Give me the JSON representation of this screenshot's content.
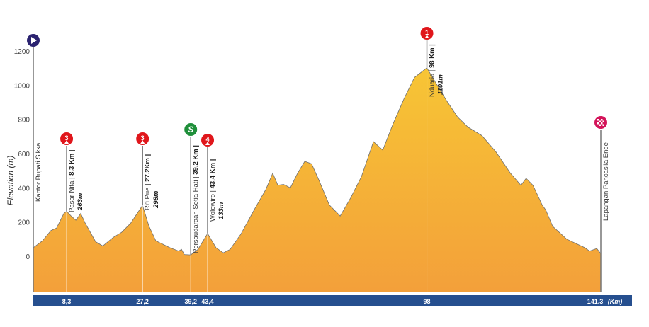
{
  "chart_data": {
    "type": "area",
    "title": "",
    "xlabel": "(Km)",
    "ylabel": "Elevation (m)",
    "xlim": [
      0,
      141.3
    ],
    "ylim": [
      -200,
      1200
    ],
    "y_ticks": [
      0,
      200,
      400,
      600,
      800,
      1000,
      1200
    ],
    "x_tick_labels": [
      {
        "km": 8.3,
        "label": "8,3"
      },
      {
        "km": 27.2,
        "label": "27,2"
      },
      {
        "km": 39.2,
        "label": "39,2"
      },
      {
        "km": 43.4,
        "label": "43,4"
      },
      {
        "km": 98,
        "label": "98"
      },
      {
        "km": 141.3,
        "label": "141.3"
      }
    ],
    "grid": false,
    "colors": {
      "fill_top": "#f7c535",
      "fill_bottom": "#f3a03a",
      "axis_bar": "#264f8f",
      "climb": "#e0161b",
      "sprint": "#1f8f3a",
      "start": "#2b2370",
      "finish": "#d4145a"
    },
    "profile": {
      "x": [
        0,
        2.3,
        4.4,
        5.8,
        7.6,
        8.3,
        9.3,
        10.6,
        11.8,
        12.9,
        15.5,
        17.3,
        19.9,
        22,
        24.3,
        27.2,
        28.8,
        30.5,
        34,
        36.2,
        36.9,
        37.6,
        39.2,
        41,
        43.4,
        45.5,
        47.3,
        49,
        51.7,
        55.2,
        57.9,
        59.6,
        60.9,
        62.3,
        64,
        65.8,
        67.6,
        69.3,
        71.1,
        73.7,
        76.4,
        79,
        81.7,
        84.7,
        87,
        89.6,
        92.3,
        94.9,
        98,
        100.3,
        102.9,
        105.6,
        108.2,
        111.7,
        115.2,
        118.8,
        121.4,
        122.7,
        124.4,
        126.7,
        127.6,
        129.3,
        132.8,
        137.3,
        138.5,
        140.3,
        141.3
      ],
      "y": [
        50,
        90,
        150,
        165,
        250,
        263,
        238,
        210,
        250,
        195,
        85,
        60,
        110,
        140,
        195,
        298,
        175,
        90,
        50,
        30,
        40,
        10,
        8,
        40,
        133,
        50,
        20,
        40,
        130,
        280,
        390,
        485,
        415,
        420,
        400,
        485,
        555,
        540,
        445,
        300,
        235,
        340,
        465,
        670,
        620,
        775,
        920,
        1045,
        1101,
        1010,
        910,
        815,
        755,
        705,
        610,
        485,
        415,
        455,
        415,
        300,
        270,
        175,
        100,
        50,
        30,
        45,
        15
      ]
    },
    "markers": [
      {
        "type": "start",
        "icon": "start-flag-icon",
        "km": 0,
        "name": "Kantor Bupati Sikka",
        "km_text": "",
        "elev_text": ""
      },
      {
        "type": "climb",
        "icon": "climb-cat-icon",
        "category": "3",
        "km": 8.3,
        "name": "Pasar Nita | ",
        "km_text": "8.3 Km |",
        "elev_text": "263m"
      },
      {
        "type": "climb",
        "icon": "climb-cat-icon",
        "category": "3",
        "km": 27.2,
        "name": "Ri'i Pue | ",
        "km_text": "27.2Km |",
        "elev_text": "298m"
      },
      {
        "type": "sprint",
        "icon": "sprint-icon",
        "category": "S",
        "km": 39.2,
        "name": "Persaudaraan Setia Hati | ",
        "km_text": "39.2 Km |",
        "elev_text": ""
      },
      {
        "type": "climb",
        "icon": "climb-cat-icon",
        "category": "4",
        "km": 43.4,
        "name": "Wolowiro | ",
        "km_text": "43.4 Km |",
        "elev_text": "133m"
      },
      {
        "type": "climb",
        "icon": "climb-cat-icon",
        "category": "1",
        "km": 98,
        "name": "Nduaria | ",
        "km_text": "98 Km |",
        "elev_text": "1101m"
      },
      {
        "type": "finish",
        "icon": "finish-flag-icon",
        "km": 141.3,
        "name": "Lapangan Pancasila Ende",
        "km_text": "",
        "elev_text": ""
      }
    ]
  }
}
